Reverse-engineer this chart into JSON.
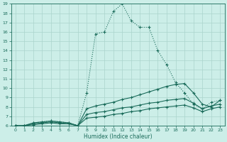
{
  "xlabel": "Humidex (Indice chaleur)",
  "background_color": "#cceee8",
  "grid_color": "#aad4cc",
  "line_color": "#1a6b5a",
  "xlim": [
    -0.5,
    23.5
  ],
  "ylim": [
    6,
    19
  ],
  "xticks": [
    0,
    1,
    2,
    3,
    4,
    5,
    6,
    7,
    8,
    9,
    10,
    11,
    12,
    13,
    14,
    15,
    16,
    17,
    18,
    19,
    20,
    21,
    22,
    23
  ],
  "yticks": [
    6,
    7,
    8,
    9,
    10,
    11,
    12,
    13,
    14,
    15,
    16,
    17,
    18,
    19
  ],
  "series": [
    {
      "x": [
        0,
        1,
        2,
        3,
        4,
        5,
        6,
        7,
        8,
        9,
        10,
        11,
        12,
        13,
        14,
        15,
        16,
        17,
        18,
        19,
        20,
        21,
        22,
        23
      ],
      "y": [
        6.0,
        6.0,
        6.3,
        6.4,
        6.5,
        6.4,
        6.3,
        6.0,
        9.5,
        15.8,
        16.0,
        18.2,
        19.0,
        17.2,
        16.5,
        16.5,
        14.0,
        12.5,
        10.6,
        9.5,
        8.3,
        7.8,
        8.5,
        8.7
      ],
      "style": "dotted",
      "marker": "+",
      "markersize": 3,
      "linewidth": 0.8
    },
    {
      "x": [
        0,
        1,
        2,
        3,
        4,
        5,
        6,
        7,
        8,
        9,
        10,
        11,
        12,
        13,
        14,
        15,
        16,
        17,
        18,
        19,
        20,
        21,
        22,
        23
      ],
      "y": [
        6.0,
        6.0,
        6.3,
        6.4,
        6.5,
        6.4,
        6.3,
        6.0,
        7.8,
        8.1,
        8.3,
        8.5,
        8.8,
        9.0,
        9.3,
        9.6,
        9.9,
        10.2,
        10.4,
        10.5,
        9.5,
        8.3,
        8.0,
        8.7
      ],
      "style": "solid",
      "marker": "+",
      "markersize": 3,
      "linewidth": 0.8
    },
    {
      "x": [
        0,
        1,
        2,
        3,
        4,
        5,
        6,
        7,
        8,
        9,
        10,
        11,
        12,
        13,
        14,
        15,
        16,
        17,
        18,
        19,
        20,
        21,
        22,
        23
      ],
      "y": [
        6.0,
        6.0,
        6.2,
        6.3,
        6.4,
        6.3,
        6.2,
        6.0,
        7.2,
        7.4,
        7.5,
        7.7,
        7.9,
        8.0,
        8.2,
        8.4,
        8.5,
        8.7,
        8.8,
        8.9,
        8.4,
        7.8,
        8.1,
        8.3
      ],
      "style": "solid",
      "marker": "+",
      "markersize": 3,
      "linewidth": 0.8
    },
    {
      "x": [
        0,
        1,
        2,
        3,
        4,
        5,
        6,
        7,
        8,
        9,
        10,
        11,
        12,
        13,
        14,
        15,
        16,
        17,
        18,
        19,
        20,
        21,
        22,
        23
      ],
      "y": [
        6.0,
        6.0,
        6.1,
        6.2,
        6.3,
        6.2,
        6.2,
        6.0,
        6.8,
        6.9,
        7.0,
        7.2,
        7.3,
        7.5,
        7.6,
        7.8,
        7.9,
        8.0,
        8.1,
        8.2,
        7.9,
        7.5,
        7.8,
        8.0
      ],
      "style": "solid",
      "marker": "+",
      "markersize": 3,
      "linewidth": 0.8
    }
  ]
}
